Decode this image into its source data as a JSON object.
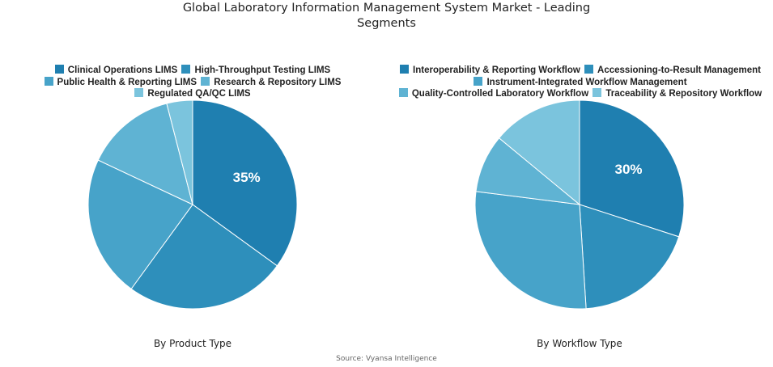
{
  "title_line1": "Global Laboratory Information Management System Market - Leading",
  "title_line2": "Segments",
  "source": "Source: Vyansa Intelligence",
  "colors": [
    "#1f7fb0",
    "#2e8fbb",
    "#47a3c9",
    "#5fb3d3",
    "#7bc4dd"
  ],
  "chart_data": [
    {
      "type": "pie",
      "title": "By Product Type",
      "categories": [
        "Clinical Operations LIMS",
        "High-Throughput Testing LIMS",
        "Public Health & Reporting LIMS",
        "Research & Repository LIMS",
        "Regulated QA/QC LIMS"
      ],
      "values": [
        35,
        25,
        22,
        14,
        4
      ],
      "labels_shown": [
        "35%"
      ],
      "legend_position": "top"
    },
    {
      "type": "pie",
      "title": "By Workflow Type",
      "categories": [
        "Interoperability & Reporting Workflow",
        "Accessioning-to-Result Management",
        "Instrument-Integrated Workflow Management",
        "Quality-Controlled Laboratory Workflow",
        "Traceability & Repository Workflow"
      ],
      "values": [
        30,
        19,
        28,
        9,
        14
      ],
      "labels_shown": [
        "30%"
      ],
      "legend_position": "top"
    }
  ],
  "left": {
    "subtitle": "By Product Type",
    "legend": [
      "Clinical Operations LIMS",
      "High-Throughput Testing LIMS",
      "Public Health & Reporting LIMS",
      "Research & Repository LIMS",
      "Regulated QA/QC LIMS"
    ],
    "label": "35%"
  },
  "right": {
    "subtitle": "By Workflow Type",
    "legend": [
      "Interoperability & Reporting Workflow",
      "Accessioning-to-Result Management",
      "Instrument-Integrated Workflow Management",
      "Quality-Controlled Laboratory Workflow",
      "Traceability & Repository Workflow"
    ],
    "label": "30%"
  }
}
